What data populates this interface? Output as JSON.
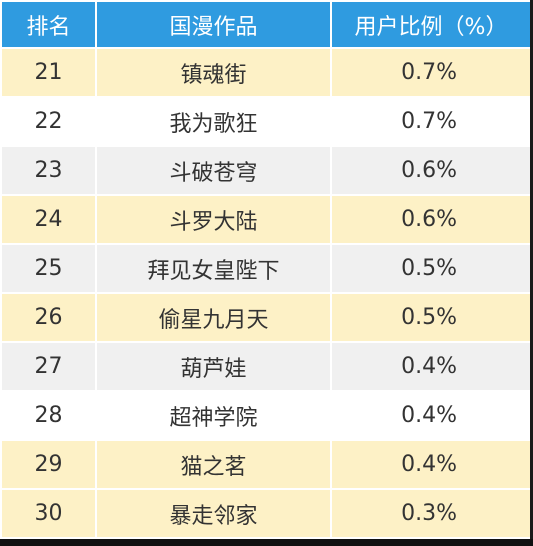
{
  "table": {
    "headers": {
      "rank": "排名",
      "title": "国漫作品",
      "ratio": "用户比例（%）"
    },
    "rows": [
      {
        "rank": "21",
        "title": "镇魂街",
        "ratio": "0.7%"
      },
      {
        "rank": "22",
        "title": "我为歌狂",
        "ratio": "0.7%"
      },
      {
        "rank": "23",
        "title": "斗破苍穹",
        "ratio": "0.6%"
      },
      {
        "rank": "24",
        "title": "斗罗大陆",
        "ratio": "0.6%"
      },
      {
        "rank": "25",
        "title": "拜见女皇陛下",
        "ratio": "0.5%"
      },
      {
        "rank": "26",
        "title": "偷星九月天",
        "ratio": "0.5%"
      },
      {
        "rank": "27",
        "title": "葫芦娃",
        "ratio": "0.4%"
      },
      {
        "rank": "28",
        "title": "超神学院",
        "ratio": "0.4%"
      },
      {
        "rank": "29",
        "title": "猫之茗",
        "ratio": "0.4%"
      },
      {
        "rank": "30",
        "title": "暴走邻家",
        "ratio": "0.3%"
      }
    ]
  },
  "colors": {
    "header_bg": "#2f9be0",
    "header_text": "#ffffff",
    "row_cream": "#fdf1c6",
    "row_white": "#ffffff",
    "row_gray": "#f0f0f0",
    "cell_text": "#333333"
  }
}
